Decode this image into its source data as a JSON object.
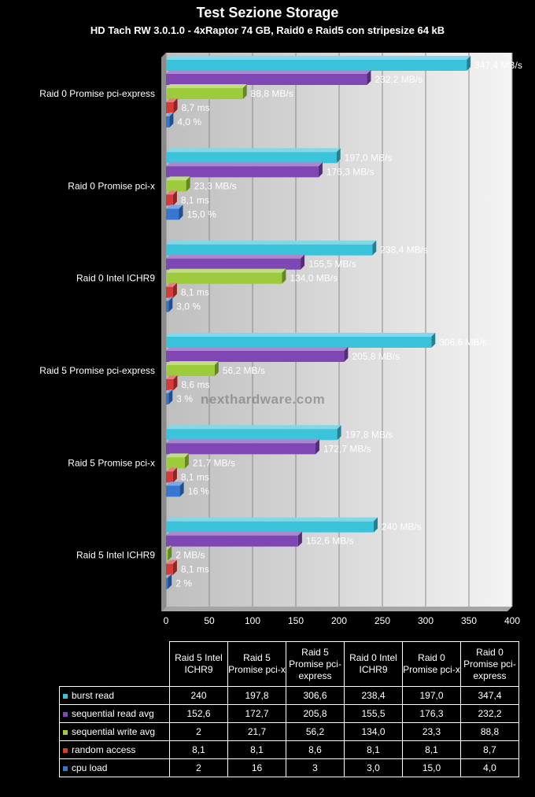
{
  "chart_data": {
    "type": "bar",
    "orientation": "horizontal",
    "title": "Test  Sezione Storage",
    "subtitle": "HD Tach RW 3.0.1.0 - 4xRaptor 74 GB, Raid0 e Raid5 con stripesize 64 kB",
    "categories": [
      "Raid 0 Promise pci-express",
      "Raid 0 Promise pci-x",
      "Raid 0 Intel ICHR9",
      "Raid 5 Promise pci-express",
      "Raid 5 Promise pci-x",
      "Raid 5 Intel ICHR9"
    ],
    "series": [
      {
        "name": "burst read",
        "color": "#3cc3dc",
        "values": [
          347.4,
          197.0,
          238.4,
          306.6,
          197.8,
          240
        ],
        "labels": [
          "347,4 MB/s",
          "197,0 MB/s",
          "238,4 MB/s",
          "306,6 MB/s",
          "197,8 MB/s",
          "240 MB/s"
        ]
      },
      {
        "name": "sequential read avg",
        "color": "#7e47b4",
        "values": [
          232.2,
          176.3,
          155.5,
          205.8,
          172.7,
          152.6
        ],
        "labels": [
          "232,2 MB/s",
          "176,3 MB/s",
          "155,5 MB/s",
          "205,8 MB/s",
          "172,7 MB/s",
          "152,6 MB/s"
        ]
      },
      {
        "name": "sequential write avg",
        "color": "#9ccc3c",
        "values": [
          88.8,
          23.3,
          134.0,
          56.2,
          21.7,
          2
        ],
        "labels": [
          "88,8 MB/s",
          "23,3 MB/s",
          "134,0 MB/s",
          "56,2 MB/s",
          "21,7 MB/s",
          "2 MB/s"
        ]
      },
      {
        "name": "random access",
        "color": "#d83a3a",
        "values": [
          8.7,
          8.1,
          8.1,
          8.6,
          8.1,
          8.1
        ],
        "labels": [
          "8,7 ms",
          "8,1 ms",
          "8,1 ms",
          "8,6 ms",
          "8,1 ms",
          "8,1 ms"
        ]
      },
      {
        "name": "cpu load",
        "color": "#3578d2",
        "values": [
          4.0,
          15.0,
          3.0,
          3,
          16,
          2
        ],
        "labels": [
          "4,0 %",
          "15,0 %",
          "3,0 %",
          "3 %",
          "16 %",
          "2 %"
        ]
      }
    ],
    "xlim": [
      0,
      400
    ],
    "xticks": [
      0,
      50,
      100,
      150,
      200,
      250,
      300,
      350,
      400
    ],
    "grid": true,
    "legend_placement": "table below chart"
  },
  "watermark": "nexthardware.com",
  "table": {
    "columns": [
      "Raid 5 Intel ICHR9",
      "Raid 5 Promise pci-x",
      "Raid 5 Promise pci-express",
      "Raid 0 Intel ICHR9",
      "Raid 0 Promise pci-x",
      "Raid 0 Promise pci-express"
    ],
    "rows": [
      {
        "name": "burst read",
        "color": "#3cc3dc",
        "cells": [
          "240",
          "197,8",
          "306,6",
          "238,4",
          "197,0",
          "347,4"
        ]
      },
      {
        "name": "sequential read avg",
        "color": "#7e47b4",
        "cells": [
          "152,6",
          "172,7",
          "205,8",
          "155,5",
          "176,3",
          "232,2"
        ]
      },
      {
        "name": "sequential write avg",
        "color": "#9ccc3c",
        "cells": [
          "2",
          "21,7",
          "56,2",
          "134,0",
          "23,3",
          "88,8"
        ]
      },
      {
        "name": "random access",
        "color": "#d83a3a",
        "cells": [
          "8,1",
          "8,1",
          "8,6",
          "8,1",
          "8,1",
          "8,7"
        ]
      },
      {
        "name": "cpu load",
        "color": "#3578d2",
        "cells": [
          "2",
          "16",
          "3",
          "3,0",
          "15,0",
          "4,0"
        ]
      }
    ]
  }
}
